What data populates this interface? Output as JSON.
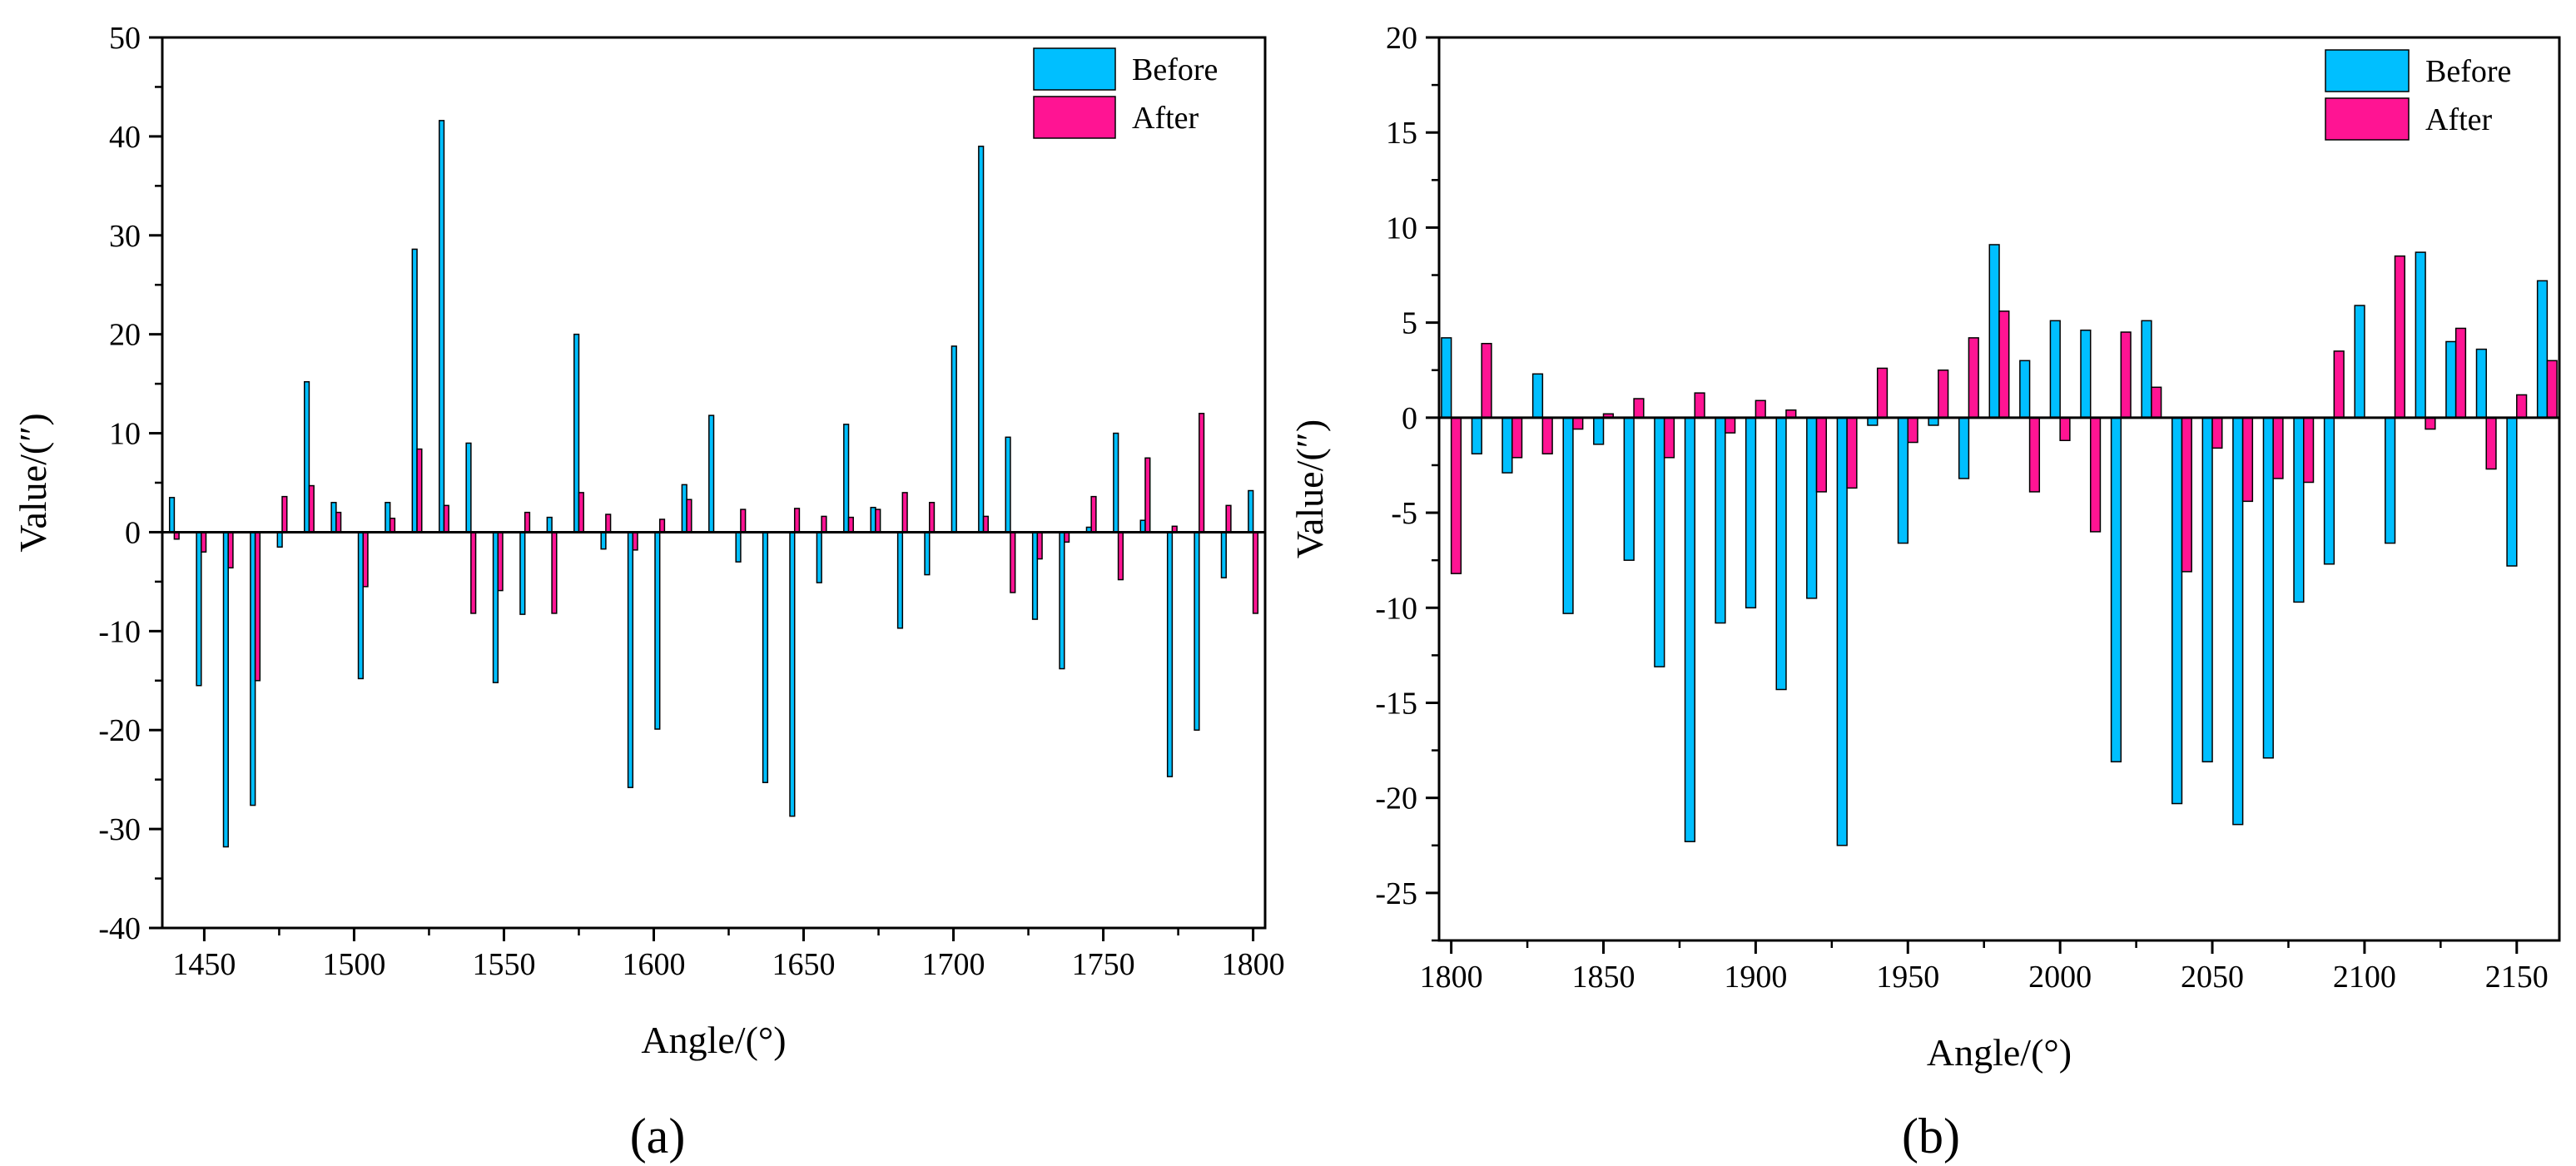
{
  "chart_data": [
    {
      "type": "bar",
      "panel_label": "(a)",
      "xlabel": "Angle/(°)",
      "ylabel": "Value/(″)",
      "xlim": [
        1436,
        1804
      ],
      "ylim": [
        -40,
        50
      ],
      "xticks": [
        1450,
        1500,
        1550,
        1600,
        1650,
        1700,
        1750,
        1800
      ],
      "yticks": [
        -40,
        -30,
        -20,
        -10,
        0,
        10,
        20,
        30,
        40,
        50
      ],
      "legend_position": "top-right",
      "x": [
        1440,
        1449,
        1458,
        1467,
        1476,
        1485,
        1494,
        1503,
        1512,
        1521,
        1530,
        1539,
        1548,
        1557,
        1566,
        1575,
        1584,
        1593,
        1602,
        1611,
        1620,
        1629,
        1638,
        1647,
        1656,
        1665,
        1674,
        1683,
        1692,
        1701,
        1710,
        1719,
        1728,
        1737,
        1746,
        1755,
        1764,
        1773,
        1782,
        1791,
        1800
      ],
      "series": [
        {
          "name": "Before",
          "color": "#00BFFF",
          "values": [
            3.5,
            -15.5,
            -31.8,
            -27.6,
            -1.5,
            15.2,
            3.0,
            -14.8,
            3.0,
            28.6,
            41.6,
            9.0,
            -15.2,
            -8.3,
            1.5,
            20.0,
            -1.7,
            -25.8,
            -19.9,
            4.8,
            11.8,
            -3.0,
            -25.3,
            -28.7,
            -5.1,
            10.9,
            2.5,
            -9.7,
            -4.3,
            18.8,
            39.0,
            9.6,
            -8.8,
            -13.8,
            0.5,
            10.0,
            1.2,
            -24.7,
            -20.0,
            -4.6,
            4.2
          ]
        },
        {
          "name": "After",
          "color": "#FF1493",
          "values": [
            -0.7,
            -2.0,
            -3.6,
            -15.0,
            3.6,
            4.7,
            2.0,
            -5.5,
            1.4,
            8.4,
            2.7,
            -8.2,
            -5.9,
            2.0,
            -8.2,
            4.0,
            1.8,
            -1.8,
            1.3,
            3.3,
            0.0,
            2.3,
            0.0,
            2.4,
            1.6,
            1.5,
            2.3,
            4.0,
            3.0,
            0.0,
            1.6,
            -6.1,
            -2.7,
            -1.0,
            3.6,
            -4.8,
            7.5,
            0.6,
            12.0,
            2.7,
            -8.2
          ]
        }
      ]
    },
    {
      "type": "bar",
      "panel_label": "(b)",
      "xlabel": "Angle/(°)",
      "ylabel": "Value/(″)",
      "xlim": [
        1796,
        2164
      ],
      "ylim": [
        -27.5,
        20
      ],
      "xticks": [
        1800,
        1850,
        1900,
        1950,
        2000,
        2050,
        2100,
        2150
      ],
      "yticks": [
        -25,
        -20,
        -15,
        -10,
        -5,
        0,
        5,
        10,
        15,
        20
      ],
      "legend_position": "top-right",
      "x": [
        1800,
        1810,
        1820,
        1830,
        1840,
        1850,
        1860,
        1870,
        1880,
        1890,
        1900,
        1910,
        1920,
        1930,
        1940,
        1950,
        1960,
        1970,
        1980,
        1990,
        2000,
        2010,
        2020,
        2030,
        2040,
        2050,
        2060,
        2070,
        2080,
        2090,
        2100,
        2110,
        2120,
        2130,
        2140,
        2150,
        2160
      ],
      "series": [
        {
          "name": "Before",
          "color": "#00BFFF",
          "values": [
            4.2,
            -1.9,
            -2.9,
            2.3,
            -10.3,
            -1.4,
            -7.5,
            -13.1,
            -22.3,
            -10.8,
            -10.0,
            -14.3,
            -9.5,
            -22.5,
            -0.4,
            -6.6,
            -0.4,
            -3.2,
            9.1,
            3.0,
            5.1,
            4.6,
            -18.1,
            5.1,
            -20.3,
            -18.1,
            -21.4,
            -17.9,
            -9.7,
            -7.7,
            5.9,
            -6.6,
            8.7,
            4.0,
            3.6,
            -7.8,
            7.2
          ]
        },
        {
          "name": "After",
          "color": "#FF1493",
          "values": [
            -8.2,
            3.9,
            -2.1,
            -1.9,
            -0.6,
            0.2,
            1.0,
            -2.1,
            1.3,
            -0.8,
            0.9,
            0.4,
            -3.9,
            -3.7,
            2.6,
            -1.3,
            2.5,
            4.2,
            5.6,
            -3.9,
            -1.2,
            -6.0,
            4.5,
            1.6,
            -8.1,
            -1.6,
            -4.4,
            -3.2,
            -3.4,
            3.5,
            0.0,
            8.5,
            -0.6,
            4.7,
            -2.7,
            1.2,
            3.0
          ]
        }
      ]
    }
  ]
}
